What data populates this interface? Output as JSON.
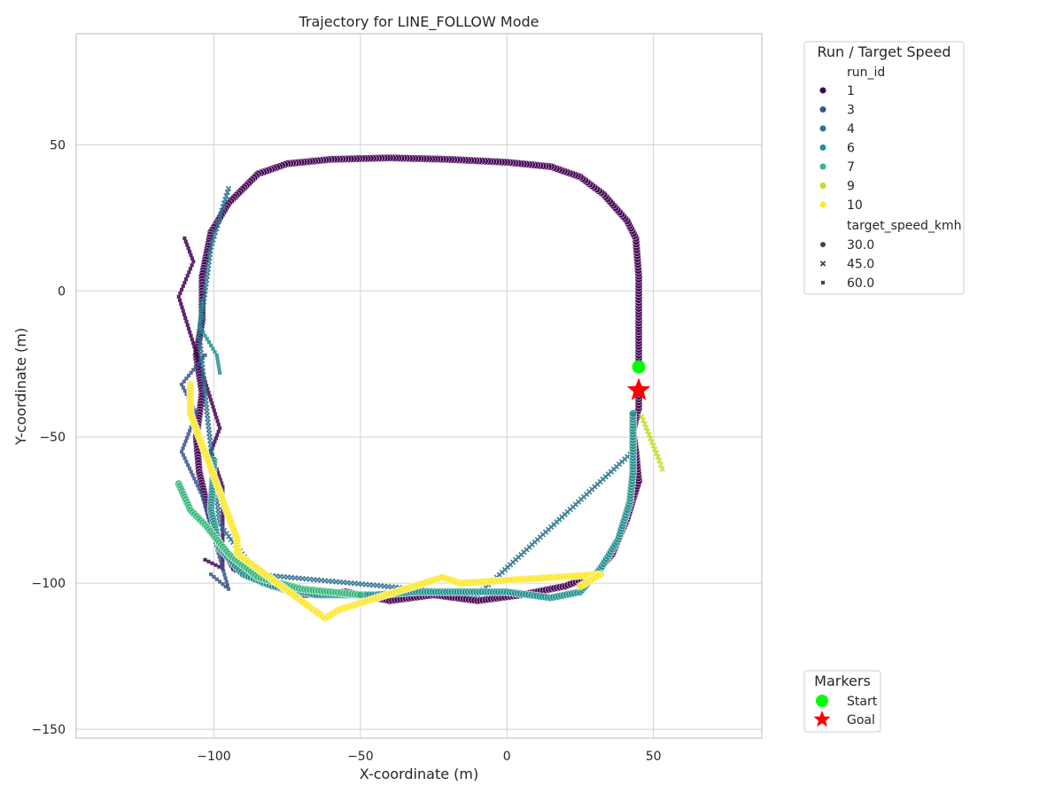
{
  "chart_data": {
    "type": "scatter",
    "title": "Trajectory for LINE_FOLLOW Mode",
    "xlabel": "X-coordinate (m)",
    "ylabel": "Y-coordinate (m)",
    "xlim": [
      -147,
      87
    ],
    "ylim": [
      -153,
      88
    ],
    "xticks": [
      -100,
      -50,
      0,
      50
    ],
    "yticks": [
      50,
      0,
      -50,
      -100,
      -150
    ],
    "xtick_labels": [
      "−100",
      "−50",
      "0",
      "50"
    ],
    "ytick_labels": [
      "50",
      "0",
      "−50",
      "−100",
      "−150"
    ],
    "grid": true,
    "legend": {
      "title": "Run / Target Speed",
      "placement": "outside-top-right",
      "hue_title": "run_id",
      "runs": [
        {
          "label": "1",
          "color": "#440154"
        },
        {
          "label": "3",
          "color": "#3b528b"
        },
        {
          "label": "4",
          "color": "#2c728e"
        },
        {
          "label": "6",
          "color": "#21908d"
        },
        {
          "label": "7",
          "color": "#35b779"
        },
        {
          "label": "9",
          "color": "#bddf26"
        },
        {
          "label": "10",
          "color": "#fde725"
        }
      ],
      "style_title": "target_speed_kmh",
      "speeds": [
        {
          "label": "30.0",
          "marker": "circle"
        },
        {
          "label": "45.0",
          "marker": "x"
        },
        {
          "label": "60.0",
          "marker": "square"
        }
      ]
    },
    "markers_legend": {
      "title": "Markers",
      "placement": "outside-bottom-right",
      "items": [
        {
          "label": "Start",
          "marker": "circle",
          "color": "#00ff00"
        },
        {
          "label": "Goal",
          "marker": "star",
          "color": "#ff0000"
        }
      ]
    },
    "start": {
      "x": 45,
      "y": -26
    },
    "goal": {
      "x": 45,
      "y": -34
    },
    "series": [
      {
        "run_id": "1",
        "speed": "30.0",
        "color": "#440154",
        "marker": "circle",
        "points": [
          [
            45,
            -26
          ],
          [
            45,
            -10
          ],
          [
            45,
            5
          ],
          [
            44,
            18
          ],
          [
            41,
            24
          ],
          [
            33,
            33
          ],
          [
            25,
            39
          ],
          [
            15,
            42.5
          ],
          [
            0,
            44
          ],
          [
            -20,
            45
          ],
          [
            -40,
            45.5
          ],
          [
            -60,
            45
          ],
          [
            -75,
            43.5
          ],
          [
            -85,
            40
          ],
          [
            -95,
            30
          ],
          [
            -101,
            20
          ],
          [
            -104,
            5
          ],
          [
            -104,
            -10
          ],
          [
            -106,
            -22
          ],
          [
            -104,
            -35
          ],
          [
            -106,
            -50
          ],
          [
            -105,
            -62
          ],
          [
            -102,
            -75
          ],
          [
            -99,
            -85
          ],
          [
            -93,
            -95
          ],
          [
            -83,
            -100
          ],
          [
            -70,
            -104
          ],
          [
            -55,
            -103
          ],
          [
            -40,
            -106
          ],
          [
            -25,
            -104
          ],
          [
            -10,
            -106
          ],
          [
            5,
            -104
          ],
          [
            20,
            -101
          ],
          [
            30,
            -97
          ],
          [
            36,
            -90
          ],
          [
            41,
            -78
          ],
          [
            45,
            -65
          ],
          [
            44,
            -55
          ],
          [
            43,
            -48
          ],
          [
            45,
            -40
          ],
          [
            45,
            -34
          ]
        ]
      },
      {
        "run_id": "1",
        "speed": "60.0",
        "color": "#440154",
        "marker": "square",
        "points": [
          [
            -110,
            18
          ],
          [
            -107,
            10
          ],
          [
            -112,
            -2
          ],
          [
            -98,
            -47
          ],
          [
            -101,
            -55
          ],
          [
            -97,
            -67
          ],
          [
            -97,
            -95
          ],
          [
            -103,
            -92
          ]
        ]
      },
      {
        "run_id": "3",
        "speed": "60.0",
        "color": "#3b528b",
        "marker": "square",
        "points": [
          [
            -103,
            -22
          ],
          [
            -111,
            -32
          ],
          [
            -106,
            -42
          ],
          [
            -111,
            -55
          ],
          [
            -104,
            -70
          ],
          [
            -95,
            -102
          ],
          [
            -101,
            -97
          ]
        ]
      },
      {
        "run_id": "4",
        "speed": "45.0",
        "color": "#2c728e",
        "marker": "x",
        "points": [
          [
            -95,
            35
          ],
          [
            -101,
            15
          ],
          [
            -105,
            -15
          ],
          [
            -102,
            -45
          ],
          [
            -98,
            -80
          ],
          [
            -85,
            -97
          ],
          [
            -10,
            -104
          ],
          [
            43,
            -55
          ]
        ]
      },
      {
        "run_id": "6",
        "speed": "30.0",
        "color": "#21908d",
        "marker": "circle",
        "points": [
          [
            -100,
            -58
          ],
          [
            -101,
            -75
          ],
          [
            -98,
            -88
          ],
          [
            -90,
            -97
          ],
          [
            -80,
            -101
          ],
          [
            -65,
            -104
          ],
          [
            -45,
            -104
          ],
          [
            -30,
            -103
          ],
          [
            -15,
            -103
          ],
          [
            0,
            -103
          ],
          [
            15,
            -105
          ],
          [
            25,
            -103
          ],
          [
            32,
            -95
          ],
          [
            38,
            -85
          ],
          [
            42,
            -72
          ],
          [
            43,
            -62
          ],
          [
            43,
            -50
          ],
          [
            43,
            -42
          ]
        ]
      },
      {
        "run_id": "6",
        "speed": "60.0",
        "color": "#21908d",
        "marker": "square",
        "points": [
          [
            -98,
            -28
          ],
          [
            -99,
            -22
          ],
          [
            -105,
            -12
          ],
          [
            -104,
            -4
          ]
        ]
      },
      {
        "run_id": "7",
        "speed": "30.0",
        "color": "#35b779",
        "marker": "circle",
        "points": [
          [
            -112,
            -66
          ],
          [
            -108,
            -75
          ],
          [
            -103,
            -80
          ],
          [
            -95,
            -90
          ],
          [
            -85,
            -98
          ],
          [
            -70,
            -102
          ],
          [
            -50,
            -104
          ]
        ]
      },
      {
        "run_id": "9",
        "speed": "45.0",
        "color": "#bddf26",
        "marker": "x",
        "points": [
          [
            46,
            -43
          ],
          [
            48,
            -48
          ],
          [
            50,
            -53
          ],
          [
            52,
            -58
          ],
          [
            53,
            -61
          ]
        ]
      },
      {
        "run_id": "10",
        "speed": "30.0",
        "color": "#fde725",
        "marker": "circle",
        "points": [
          [
            -108,
            -32
          ],
          [
            -108,
            -42
          ],
          [
            -92,
            -85
          ],
          [
            -92,
            -90
          ],
          [
            -62,
            -112
          ],
          [
            -57,
            -109
          ],
          [
            -22,
            -98
          ],
          [
            -16,
            -100
          ],
          [
            32,
            -97
          ],
          [
            25,
            -101
          ]
        ]
      }
    ]
  }
}
